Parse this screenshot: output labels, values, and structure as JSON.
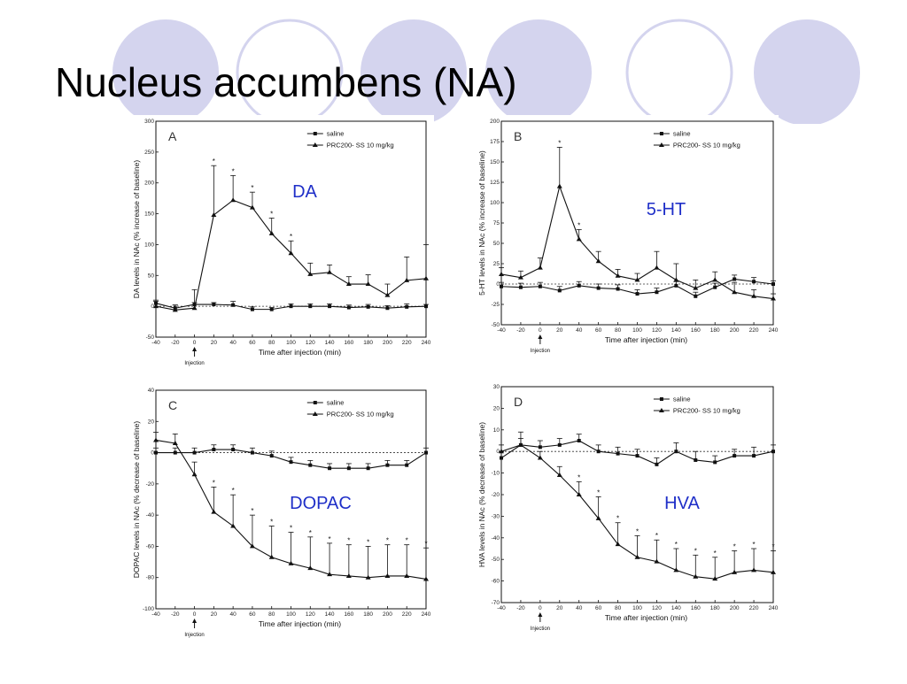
{
  "slide": {
    "title": "Nucleus accumbens (NA)"
  },
  "colors": {
    "circle_fill": "#d4d4ee",
    "circle_stroke": "#d4d4ee",
    "annotation": "#1f2fc8",
    "line": "#111111"
  },
  "chart_data": [
    {
      "type": "line",
      "panel_label": "A",
      "annotation": "DA",
      "ylabel": "DA levels in NAc (% increase of baseline)",
      "xlabel": "Time after injection (min)",
      "injection_label": "Injection",
      "xlim": [
        -40,
        240
      ],
      "ylim": [
        -50,
        300
      ],
      "xticks": [
        -40,
        -20,
        0,
        20,
        40,
        60,
        80,
        100,
        120,
        140,
        160,
        180,
        200,
        220,
        240
      ],
      "yticks": [
        -50,
        0,
        50,
        100,
        150,
        200,
        250,
        300
      ],
      "baseline": 0,
      "legend_position": "top-right",
      "x": [
        -40,
        -20,
        0,
        20,
        40,
        60,
        80,
        100,
        120,
        140,
        160,
        180,
        200,
        220,
        240
      ],
      "series": [
        {
          "name": "saline",
          "marker": "square",
          "values": [
            5,
            -3,
            3,
            3,
            2,
            -5,
            -5,
            0,
            0,
            0,
            -2,
            -1,
            -3,
            -1,
            0
          ],
          "err": [
            5,
            5,
            3,
            3,
            6,
            4,
            3,
            4,
            4,
            4,
            4,
            4,
            4,
            5,
            3
          ]
        },
        {
          "name": "PRC200- SS 10 mg/kg",
          "marker": "triangle",
          "values": [
            0,
            -6,
            -3,
            148,
            172,
            160,
            118,
            86,
            52,
            55,
            36,
            36,
            18,
            42,
            45
          ],
          "err": [
            8,
            8,
            30,
            80,
            40,
            25,
            25,
            20,
            18,
            12,
            12,
            15,
            18,
            38,
            55
          ]
        }
      ],
      "significance": [
        20,
        40,
        60,
        80,
        100
      ]
    },
    {
      "type": "line",
      "panel_label": "B",
      "annotation": "5-HT",
      "ylabel": "5-HT levels in NAc (% increase of baseline)",
      "xlabel": "Time after injection (min)",
      "injection_label": "Injection",
      "xlim": [
        -40,
        240
      ],
      "ylim": [
        -50,
        200
      ],
      "xticks": [
        -40,
        -20,
        0,
        20,
        40,
        60,
        80,
        100,
        120,
        140,
        160,
        180,
        200,
        220,
        240
      ],
      "yticks": [
        -50,
        -25,
        0,
        25,
        50,
        75,
        100,
        125,
        150,
        175,
        200
      ],
      "baseline": 0,
      "legend_position": "top-right",
      "x": [
        -40,
        -20,
        0,
        20,
        40,
        60,
        80,
        100,
        120,
        140,
        160,
        180,
        200,
        220,
        240
      ],
      "series": [
        {
          "name": "saline",
          "marker": "square",
          "values": [
            -3,
            -4,
            -3,
            -8,
            -2,
            -5,
            -6,
            -12,
            -10,
            -2,
            -15,
            -4,
            6,
            3,
            0
          ],
          "err": [
            5,
            5,
            5,
            5,
            5,
            5,
            5,
            5,
            5,
            5,
            5,
            5,
            5,
            5,
            4
          ]
        },
        {
          "name": "PRC200- SS 10 mg/kg",
          "marker": "triangle",
          "values": [
            12,
            8,
            20,
            120,
            55,
            28,
            10,
            5,
            20,
            5,
            -5,
            5,
            -10,
            -15,
            -18
          ],
          "err": [
            8,
            8,
            12,
            48,
            12,
            12,
            8,
            8,
            20,
            20,
            10,
            10,
            12,
            8,
            6
          ]
        }
      ],
      "significance": [
        20,
        40
      ]
    },
    {
      "type": "line",
      "panel_label": "C",
      "annotation": "DOPAC",
      "ylabel": "DOPAC levels in NAc (% decrease of baseline)",
      "xlabel": "Time after injection (min)",
      "injection_label": "Injection",
      "xlim": [
        -40,
        240
      ],
      "ylim": [
        -100,
        40
      ],
      "xticks": [
        -40,
        -20,
        0,
        20,
        40,
        60,
        80,
        100,
        120,
        140,
        160,
        180,
        200,
        220,
        240
      ],
      "yticks": [
        -100,
        -80,
        -60,
        -40,
        -20,
        0,
        20,
        40
      ],
      "baseline": 0,
      "legend_position": "top-right",
      "x": [
        -40,
        -20,
        0,
        20,
        40,
        60,
        80,
        100,
        120,
        140,
        160,
        180,
        200,
        220,
        240
      ],
      "series": [
        {
          "name": "saline",
          "marker": "square",
          "values": [
            0,
            0,
            0,
            2,
            2,
            0,
            -2,
            -6,
            -8,
            -10,
            -10,
            -10,
            -8,
            -8,
            0
          ],
          "err": [
            3,
            3,
            3,
            3,
            3,
            3,
            3,
            3,
            3,
            3,
            3,
            3,
            3,
            3,
            3
          ]
        },
        {
          "name": "PRC200- SS 10 mg/kg",
          "marker": "triangle",
          "values": [
            8,
            6,
            -14,
            -38,
            -47,
            -60,
            -67,
            -71,
            -74,
            -78,
            -79,
            -80,
            -79,
            -79,
            -81
          ],
          "err": [
            5,
            6,
            8,
            16,
            20,
            20,
            20,
            20,
            20,
            20,
            20,
            20,
            20,
            20,
            20
          ]
        }
      ],
      "significance": [
        20,
        40,
        60,
        80,
        100,
        120,
        140,
        160,
        180,
        200,
        220,
        240
      ]
    },
    {
      "type": "line",
      "panel_label": "D",
      "annotation": "HVA",
      "ylabel": "HVA levels in NAc (% decrease of baseline)",
      "xlabel": "Time after injection (min)",
      "injection_label": "Injection",
      "xlim": [
        -40,
        240
      ],
      "ylim": [
        -70,
        30
      ],
      "xticks": [
        -40,
        -20,
        0,
        20,
        40,
        60,
        80,
        100,
        120,
        140,
        160,
        180,
        200,
        220,
        240
      ],
      "yticks": [
        -70,
        -60,
        -50,
        -40,
        -30,
        -20,
        -10,
        0,
        10,
        20,
        30
      ],
      "baseline": 0,
      "legend_position": "top-right",
      "x": [
        -40,
        -20,
        0,
        20,
        40,
        60,
        80,
        100,
        120,
        140,
        160,
        180,
        200,
        220,
        240
      ],
      "series": [
        {
          "name": "saline",
          "marker": "square",
          "values": [
            -3,
            3,
            2,
            3,
            5,
            0,
            -1,
            -2,
            -6,
            0,
            -4,
            -5,
            -2,
            -2,
            0
          ],
          "err": [
            3,
            6,
            3,
            3,
            3,
            3,
            3,
            3,
            3,
            4,
            4,
            3,
            3,
            4,
            3
          ]
        },
        {
          "name": "PRC200- SS 10 mg/kg",
          "marker": "triangle",
          "values": [
            0,
            3,
            -3,
            -11,
            -20,
            -31,
            -43,
            -49,
            -51,
            -55,
            -58,
            -59,
            -56,
            -55,
            -56
          ],
          "err": [
            3,
            3,
            3,
            4,
            6,
            10,
            10,
            10,
            10,
            10,
            10,
            10,
            10,
            10,
            10
          ]
        }
      ],
      "significance": [
        40,
        60,
        80,
        100,
        120,
        140,
        160,
        180,
        200,
        220,
        240
      ]
    }
  ]
}
